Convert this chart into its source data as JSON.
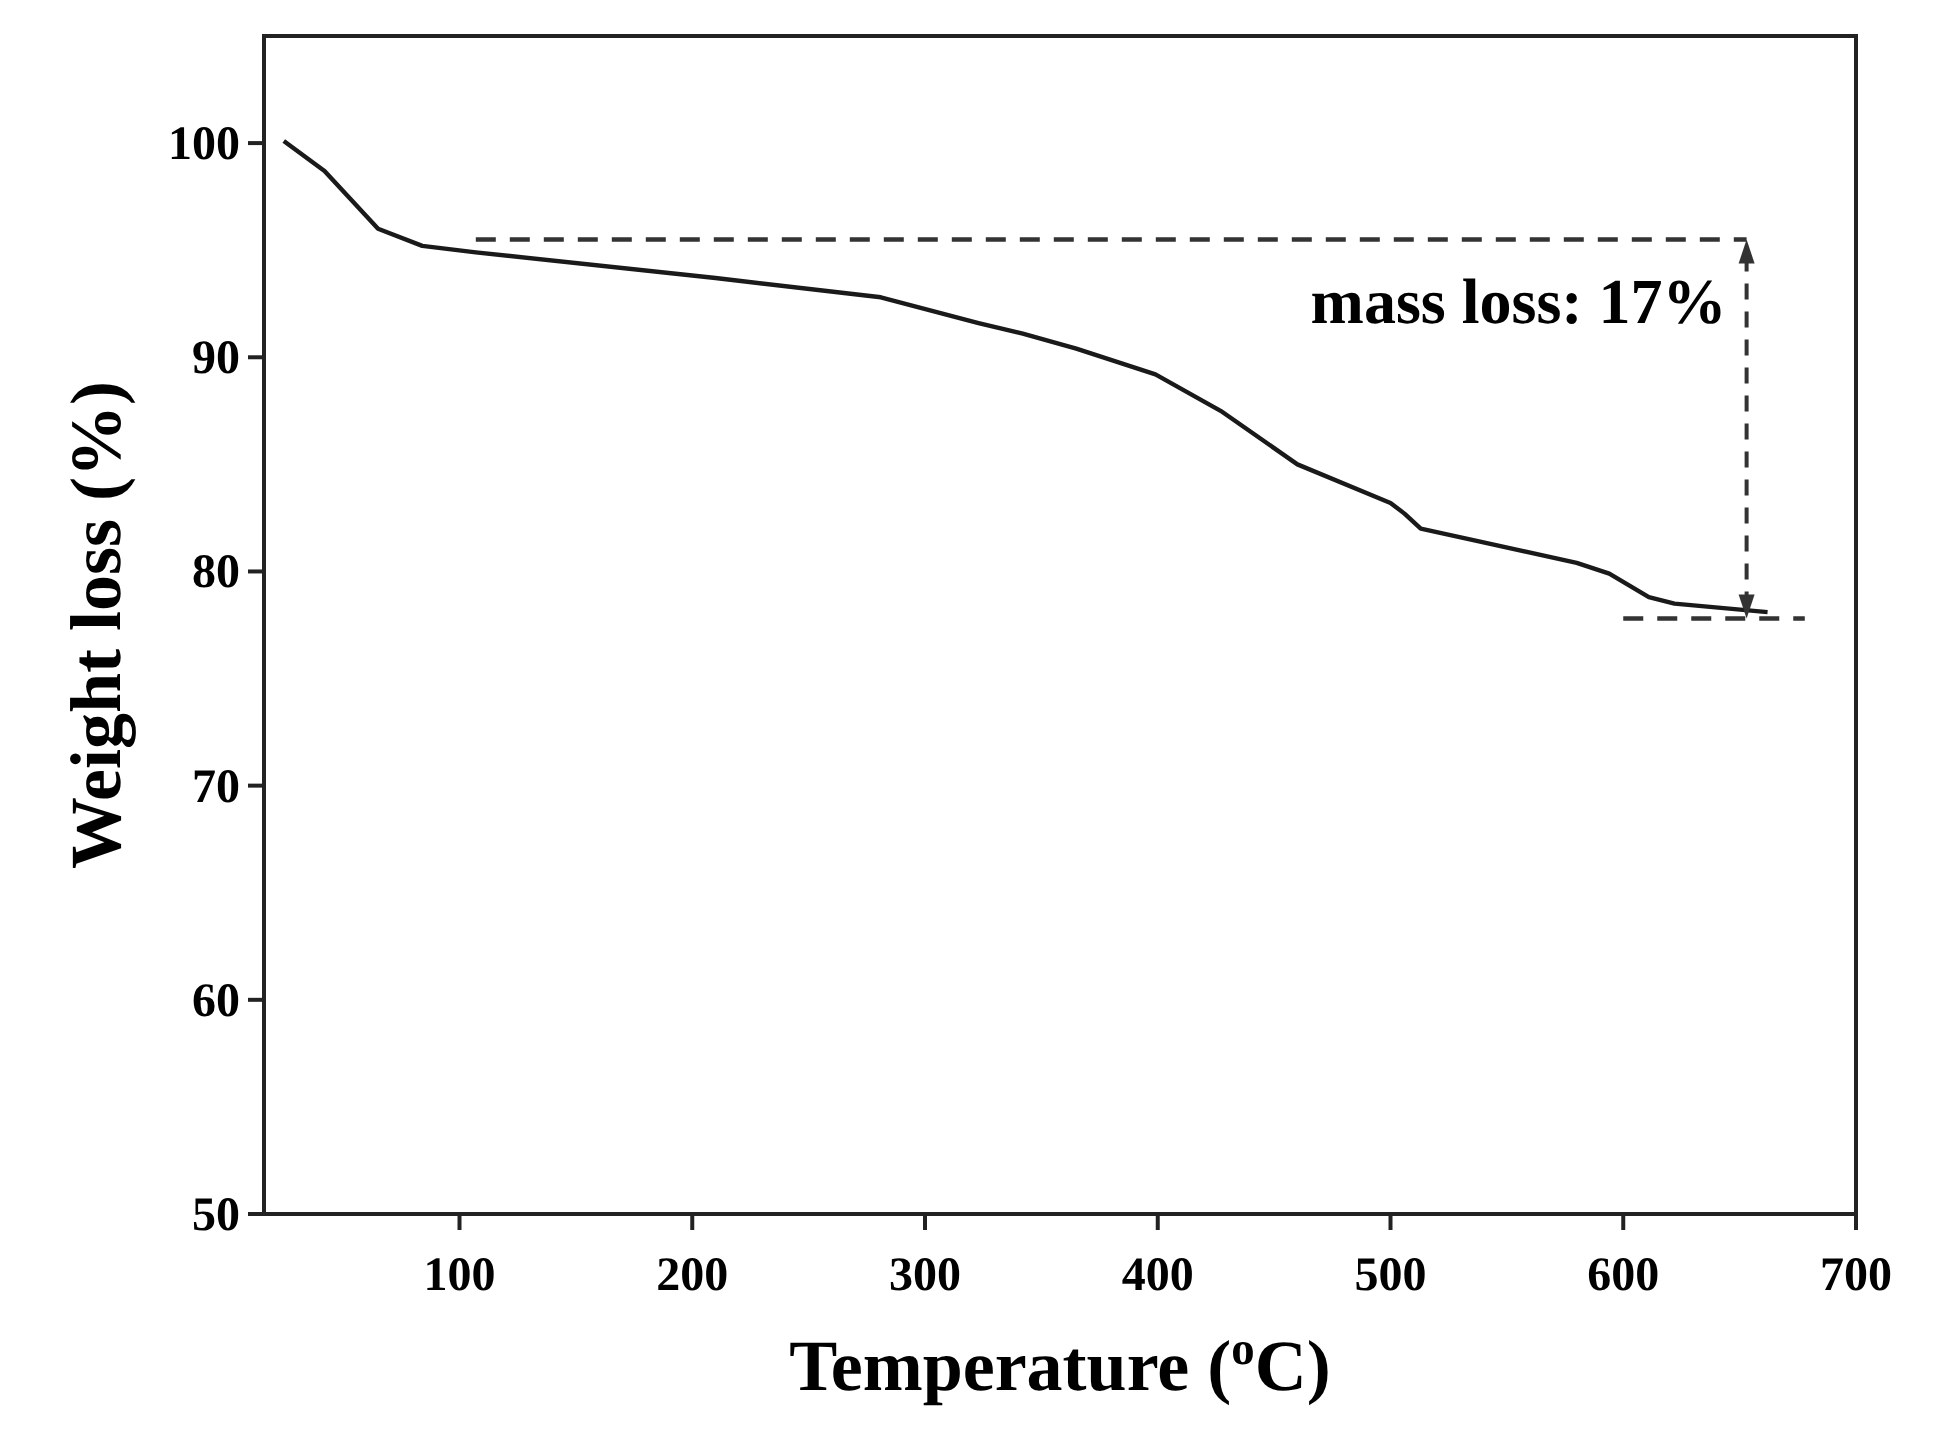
{
  "chart_data": {
    "type": "line",
    "xlabel": "Temperature ($^{o}$C)",
    "ylabel": "Weight loss (%)",
    "xlim": [
      16,
      700
    ],
    "ylim": [
      50,
      105
    ],
    "xticks": [
      100,
      200,
      300,
      400,
      500,
      600,
      700
    ],
    "yticks": [
      50,
      60,
      70,
      80,
      90,
      100
    ],
    "grid": false,
    "marker": "none",
    "series": [
      {
        "color": "#1a1a1a",
        "line_style": "solid",
        "x": [
          24.5,
          42,
          65,
          84,
          107,
          210,
          281,
          323,
          342,
          365,
          399,
          427,
          460,
          500,
          506,
          513,
          538,
          580,
          594,
          611,
          622,
          662
        ],
        "values": [
          100.1,
          98.7,
          96.0,
          95.2,
          94.9,
          93.7,
          92.8,
          91.6,
          91.1,
          90.4,
          89.2,
          87.5,
          85.0,
          83.2,
          82.7,
          82.0,
          81.4,
          80.4,
          79.9,
          78.8,
          78.5,
          78.1
        ]
      },
      {
        "color": "#333333",
        "line_style": "dashed",
        "x": [
          107,
          653
        ],
        "values": [
          95.5,
          95.5
        ]
      },
      {
        "color": "#333333",
        "line_style": "dashed",
        "x": [
          600,
          678
        ],
        "values": [
          77.8,
          77.8
        ]
      }
    ],
    "annotations": [
      {
        "text": "mass loss: 17%",
        "x": 653,
        "y": 95.5
      }
    ]
  }
}
